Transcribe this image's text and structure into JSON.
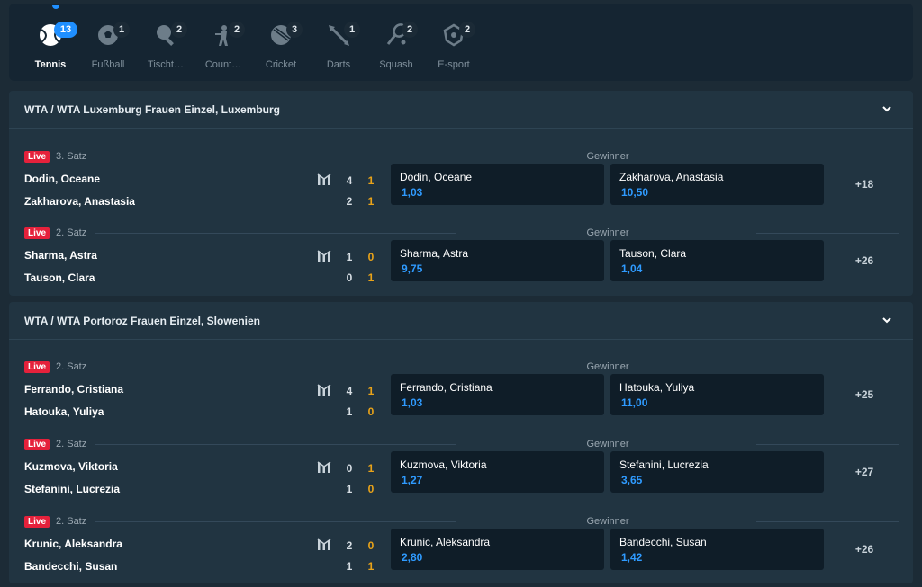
{
  "sports": [
    {
      "label": "Tennis",
      "count": "13",
      "icon": "tennis-ball-icon",
      "active": true
    },
    {
      "label": "Fußball",
      "count": "1",
      "icon": "football-icon"
    },
    {
      "label": "Tischt…",
      "count": "2",
      "icon": "table-tennis-icon"
    },
    {
      "label": "Count…",
      "count": "2",
      "icon": "counter-strike-icon"
    },
    {
      "label": "Cricket",
      "count": "3",
      "icon": "cricket-ball-icon"
    },
    {
      "label": "Darts",
      "count": "1",
      "icon": "dart-icon"
    },
    {
      "label": "Squash",
      "count": "2",
      "icon": "squash-racket-icon"
    },
    {
      "label": "E-sport",
      "count": "2",
      "icon": "esport-icon"
    }
  ],
  "leagues": [
    {
      "title": "WTA / WTA Luxemburg Frauen Einzel, Luxemburg",
      "matches": [
        {
          "live": "Live",
          "period": "3. Satz",
          "p1": "Dodin, Oceane",
          "p2": "Zakharova, Anastasia",
          "sets": [
            "4",
            "2"
          ],
          "games": [
            "1",
            "1"
          ],
          "market": "Gewinner",
          "odd1": {
            "name": "Dodin, Oceane",
            "value": "1,03"
          },
          "odd2": {
            "name": "Zakharova, Anastasia",
            "value": "10,50"
          },
          "more": "+18"
        },
        {
          "live": "Live",
          "period": "2. Satz",
          "p1": "Sharma, Astra",
          "p2": "Tauson, Clara",
          "sets": [
            "1",
            "0"
          ],
          "games": [
            "0",
            "1"
          ],
          "market": "Gewinner",
          "odd1": {
            "name": "Sharma, Astra",
            "value": "9,75"
          },
          "odd2": {
            "name": "Tauson, Clara",
            "value": "1,04"
          },
          "more": "+26"
        }
      ]
    },
    {
      "title": "WTA / WTA Portoroz Frauen Einzel, Slowenien",
      "matches": [
        {
          "live": "Live",
          "period": "2. Satz",
          "p1": "Ferrando, Cristiana",
          "p2": "Hatouka, Yuliya",
          "sets": [
            "4",
            "1"
          ],
          "games": [
            "1",
            "0"
          ],
          "market": "Gewinner",
          "odd1": {
            "name": "Ferrando, Cristiana",
            "value": "1,03"
          },
          "odd2": {
            "name": "Hatouka, Yuliya",
            "value": "11,00"
          },
          "more": "+25"
        },
        {
          "live": "Live",
          "period": "2. Satz",
          "p1": "Kuzmova, Viktoria",
          "p2": "Stefanini, Lucrezia",
          "sets": [
            "0",
            "1"
          ],
          "games": [
            "1",
            "0"
          ],
          "market": "Gewinner",
          "odd1": {
            "name": "Kuzmova, Viktoria",
            "value": "1,27"
          },
          "odd2": {
            "name": "Stefanini, Lucrezia",
            "value": "3,65"
          },
          "more": "+27"
        },
        {
          "live": "Live",
          "period": "2. Satz",
          "p1": "Krunic, Aleksandra",
          "p2": "Bandecchi, Susan",
          "sets": [
            "2",
            "1"
          ],
          "games": [
            "0",
            "1"
          ],
          "market": "Gewinner",
          "odd1": {
            "name": "Krunic, Aleksandra",
            "value": "2,80"
          },
          "odd2": {
            "name": "Bandecchi, Susan",
            "value": "1,42"
          },
          "more": "+26"
        }
      ]
    }
  ],
  "colors": {
    "accent": "#1f8fff",
    "live": "#e5213b",
    "odd_value": "#2f9bff",
    "games": "#e9a319"
  }
}
